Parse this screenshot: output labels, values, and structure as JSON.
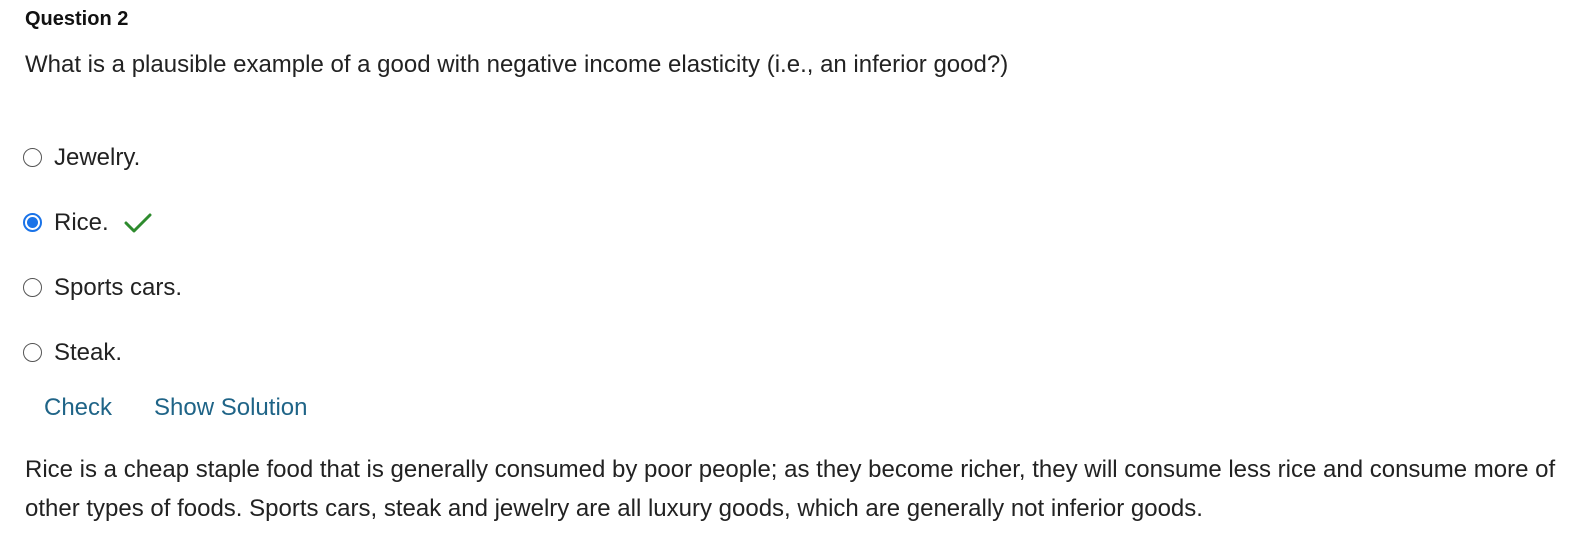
{
  "question": {
    "heading": "Question 2",
    "text": "What is a plausible example of a good with negative income elasticity (i.e., an inferior good?)"
  },
  "options": [
    {
      "label": "Jewelry.",
      "selected": false
    },
    {
      "label": "Rice.",
      "selected": true,
      "feedback_icon": "checkmark-icon",
      "feedback_color": "#2e8b2e"
    },
    {
      "label": "Sports cars.",
      "selected": false
    },
    {
      "label": "Steak.",
      "selected": false
    }
  ],
  "actions": {
    "check_label": "Check",
    "show_solution_label": "Show Solution"
  },
  "solution": {
    "text": "Rice is a cheap staple food that is generally consumed by poor people; as they become richer, they will consume less rice and consume more of other types of foods. Sports cars, steak and jewelry are all luxury goods, which are generally not inferior goods."
  },
  "colors": {
    "accent": "#1a73e8",
    "link": "#1f6487",
    "correct": "#2e8b2e"
  }
}
